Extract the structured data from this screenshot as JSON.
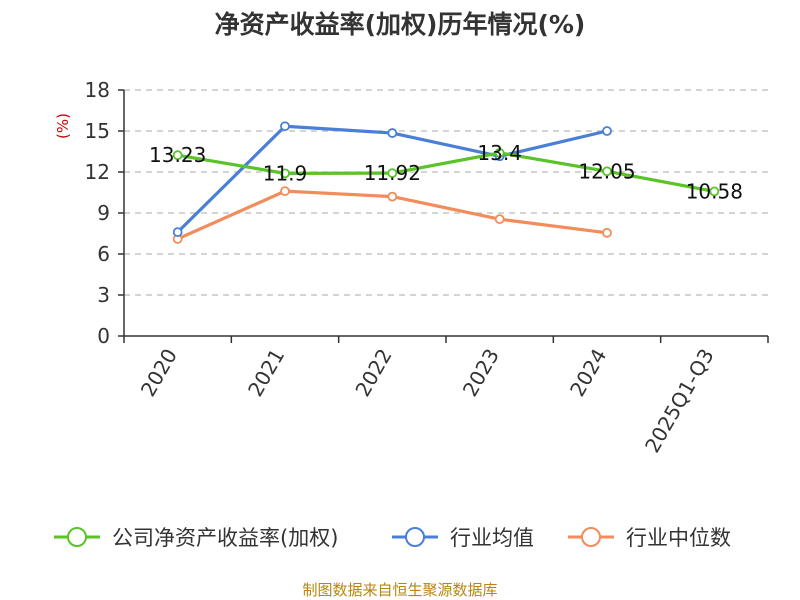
{
  "chart_data": {
    "type": "line",
    "title": "净资产收益率(加权)历年情况(%)",
    "ylabel": "(%)",
    "xlabel": "",
    "categories": [
      "2020",
      "2021",
      "2022",
      "2023",
      "2024",
      "2025Q1-Q3"
    ],
    "ylim": [
      0,
      18
    ],
    "yticks": [
      0,
      3,
      6,
      9,
      12,
      15,
      18
    ],
    "grid": true,
    "legend_position": "bottom",
    "series": [
      {
        "name": "公司净资产收益率(加权)",
        "color": "#5ac32a",
        "values": [
          13.23,
          11.9,
          11.92,
          13.4,
          12.05,
          10.58
        ],
        "labels": [
          "13.23",
          "11.9",
          "11.92",
          "13.4",
          "12.05",
          "10.58"
        ]
      },
      {
        "name": "行业均值",
        "color": "#4a7fd8",
        "values": [
          7.6,
          15.35,
          14.85,
          13.15,
          15.0,
          null
        ]
      },
      {
        "name": "行业中位数",
        "color": "#f28c5a",
        "values": [
          7.1,
          10.6,
          10.2,
          8.55,
          7.55,
          null
        ]
      }
    ]
  },
  "footer": {
    "source": "制图数据来自恒生聚源数据库"
  }
}
